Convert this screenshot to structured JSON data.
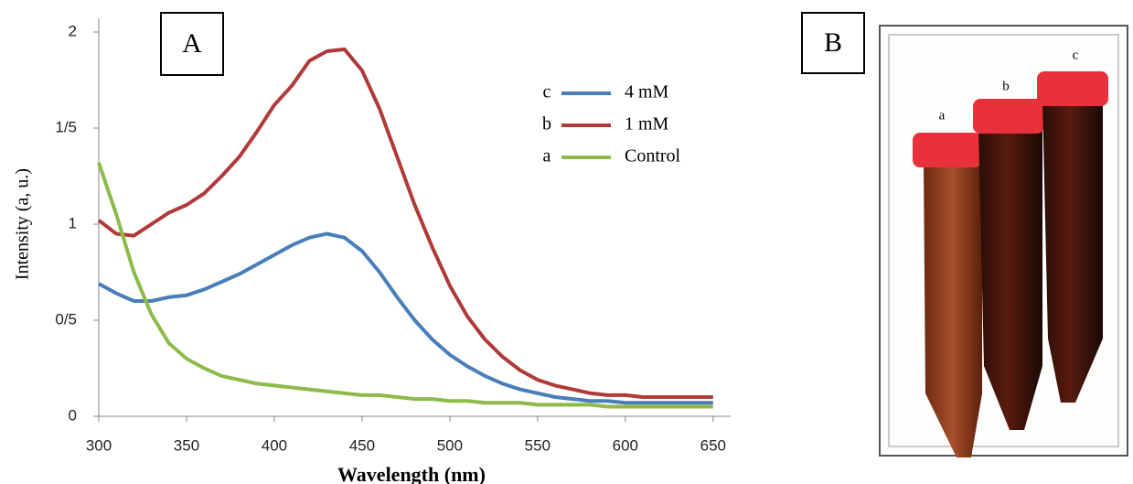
{
  "chart_data": {
    "type": "line",
    "panel_label": "A",
    "x_label": "Wavelength (nm)",
    "y_label": "Intensity (a, u.)",
    "x": [
      300,
      310,
      320,
      330,
      340,
      350,
      360,
      370,
      380,
      390,
      400,
      410,
      420,
      430,
      440,
      450,
      460,
      470,
      480,
      490,
      500,
      510,
      520,
      530,
      540,
      550,
      560,
      570,
      580,
      590,
      600,
      610,
      620,
      630,
      640,
      650
    ],
    "series": [
      {
        "letter": "c",
        "name": "4 mM",
        "color": "#4a7ebb",
        "values": [
          0.69,
          0.64,
          0.6,
          0.6,
          0.62,
          0.63,
          0.66,
          0.7,
          0.74,
          0.79,
          0.84,
          0.89,
          0.93,
          0.95,
          0.93,
          0.86,
          0.75,
          0.62,
          0.5,
          0.4,
          0.32,
          0.26,
          0.21,
          0.17,
          0.14,
          0.12,
          0.1,
          0.09,
          0.08,
          0.08,
          0.07,
          0.07,
          0.07,
          0.07,
          0.07,
          0.07
        ]
      },
      {
        "letter": "b",
        "name": "1 mM",
        "color": "#b03a3a",
        "values": [
          1.02,
          0.95,
          0.94,
          1.0,
          1.06,
          1.1,
          1.16,
          1.25,
          1.35,
          1.48,
          1.62,
          1.72,
          1.85,
          1.9,
          1.91,
          1.8,
          1.6,
          1.35,
          1.1,
          0.88,
          0.68,
          0.52,
          0.4,
          0.31,
          0.24,
          0.19,
          0.16,
          0.14,
          0.12,
          0.11,
          0.11,
          0.1,
          0.1,
          0.1,
          0.1,
          0.1
        ]
      },
      {
        "letter": "a",
        "name": "Control",
        "color": "#8dbb4a",
        "values": [
          1.32,
          1.05,
          0.75,
          0.53,
          0.38,
          0.3,
          0.25,
          0.21,
          0.19,
          0.17,
          0.16,
          0.15,
          0.14,
          0.13,
          0.12,
          0.11,
          0.11,
          0.1,
          0.09,
          0.09,
          0.08,
          0.08,
          0.07,
          0.07,
          0.07,
          0.06,
          0.06,
          0.06,
          0.06,
          0.05,
          0.05,
          0.05,
          0.05,
          0.05,
          0.05,
          0.05
        ]
      }
    ],
    "xlim": [
      300,
      660
    ],
    "xticks": [
      300,
      350,
      400,
      450,
      500,
      550,
      600,
      650
    ],
    "ylim": [
      0,
      2
    ],
    "yticks": [
      0,
      {
        "value": 0.5,
        "label": "0/5"
      },
      1,
      {
        "value": 1.5,
        "label": "1/5"
      },
      2
    ]
  },
  "photo": {
    "panel_label": "B",
    "tube_labels": [
      "a",
      "b",
      "c"
    ]
  }
}
